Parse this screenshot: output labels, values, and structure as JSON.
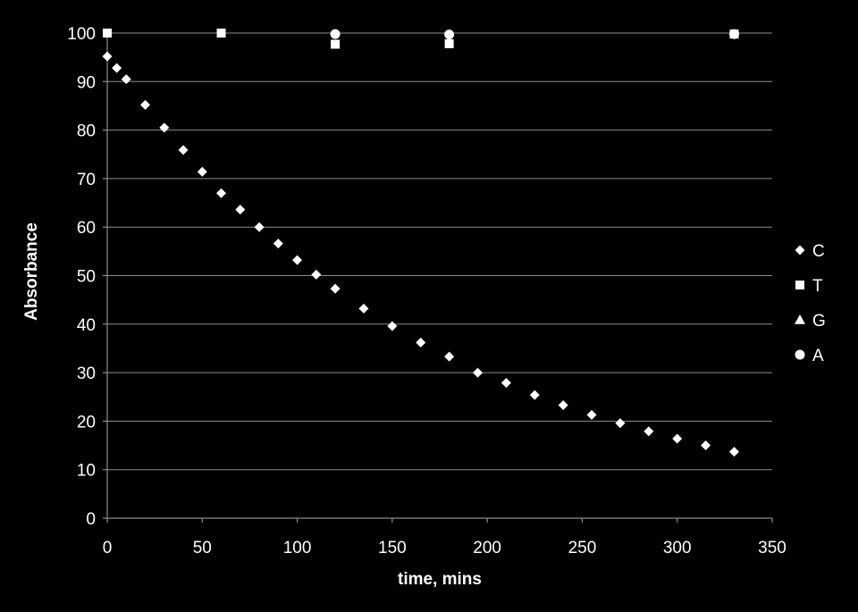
{
  "colors": {
    "background": "#000000",
    "marker": "#ffffff",
    "gridline": "#8c8c8c"
  },
  "chart_data": {
    "type": "scatter",
    "title": "",
    "xlabel": "time, mins",
    "ylabel": "Absorbance",
    "xlim": [
      0,
      350
    ],
    "ylim": [
      0,
      100
    ],
    "xticks": [
      0,
      50,
      100,
      150,
      200,
      250,
      300,
      350
    ],
    "yticks": [
      0,
      10,
      20,
      30,
      40,
      50,
      60,
      70,
      80,
      90,
      100
    ],
    "grid": "horizontal",
    "legend_position": "right",
    "series": [
      {
        "name": "C",
        "marker": "diamond",
        "x": [
          0,
          5,
          10,
          20,
          30,
          40,
          50,
          60,
          70,
          80,
          90,
          100,
          110,
          120,
          135,
          150,
          165,
          180,
          195,
          210,
          225,
          240,
          255,
          270,
          285,
          300,
          315,
          330
        ],
        "y": [
          95.2,
          92.8,
          90.5,
          85.2,
          80.5,
          75.9,
          71.4,
          67.0,
          63.6,
          60.0,
          56.6,
          53.2,
          50.2,
          47.3,
          43.2,
          39.6,
          36.2,
          33.3,
          30.0,
          27.9,
          25.4,
          23.3,
          21.3,
          19.6,
          17.9,
          16.4,
          15.0,
          13.7
        ]
      },
      {
        "name": "T",
        "marker": "square",
        "x": [
          0,
          60,
          120,
          180,
          330
        ],
        "y": [
          100,
          100,
          97.7,
          97.8,
          99.8
        ]
      },
      {
        "name": "G",
        "marker": "triangle",
        "x": [],
        "y": []
      },
      {
        "name": "A",
        "marker": "circle",
        "x": [
          120,
          180,
          330
        ],
        "y": [
          99.8,
          99.7,
          99.8
        ]
      }
    ]
  }
}
